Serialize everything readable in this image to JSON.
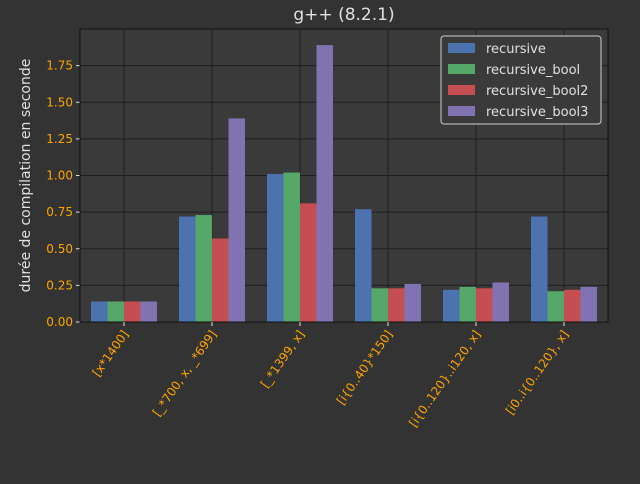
{
  "colors": {
    "background": "#333333",
    "plot_background": "#3a3a3a",
    "grid": "#1f1f1f",
    "tick_label": "#ffa500",
    "text": "#e0e0e0",
    "legend_background": "#3a3a3a",
    "legend_border": "#d0d0d0"
  },
  "chart_data": {
    "type": "bar",
    "title": "g++ (8.2.1)",
    "xlabel": "",
    "ylabel": "durée de compilation en seconde",
    "ylim": [
      0,
      2.0
    ],
    "yticks": [
      "0.00",
      "0.25",
      "0.50",
      "0.75",
      "1.00",
      "1.25",
      "1.50",
      "1.75"
    ],
    "grid": true,
    "legend_position": "top-right",
    "categories": [
      "[x*1400]",
      "[_*700, x, _*699]",
      "[_*1399, x]",
      "[i{0..40}*150]",
      "[i{0..120}..i120, x]",
      "[i0..i{0..120}, x]"
    ],
    "series": [
      {
        "name": "recursive",
        "color": "#4c72b0",
        "values": [
          0.14,
          0.72,
          1.01,
          0.77,
          0.22,
          0.72
        ]
      },
      {
        "name": "recursive_bool",
        "color": "#55a868",
        "values": [
          0.14,
          0.73,
          1.02,
          0.23,
          0.24,
          0.21
        ]
      },
      {
        "name": "recursive_bool2",
        "color": "#c44e52",
        "values": [
          0.14,
          0.57,
          0.81,
          0.23,
          0.23,
          0.22
        ]
      },
      {
        "name": "recursive_bool3",
        "color": "#8172b2",
        "values": [
          0.14,
          1.39,
          1.89,
          0.26,
          0.27,
          0.24
        ]
      }
    ]
  }
}
